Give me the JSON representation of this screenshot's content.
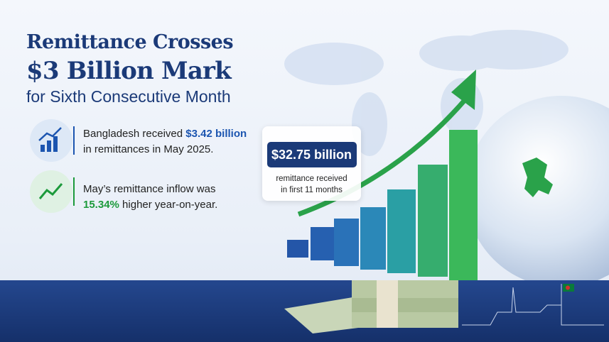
{
  "header": {
    "title_line1": "Remittance Crosses",
    "title_line2": "$3 Billion Mark",
    "subtitle": "for Sixth Consecutive Month"
  },
  "facts": [
    {
      "line1": "Bangladesh received",
      "highlight": "$3.42 billion",
      "line2": "in remittances in May 2025."
    },
    {
      "line1": "May’s remittance inflow was",
      "highlight": "15.34%",
      "line2": "higher year-on-year."
    }
  ],
  "callout": {
    "amount": "$32.75 billion",
    "caption_line1": "remittance received",
    "caption_line2": "in first 11 months"
  }
}
